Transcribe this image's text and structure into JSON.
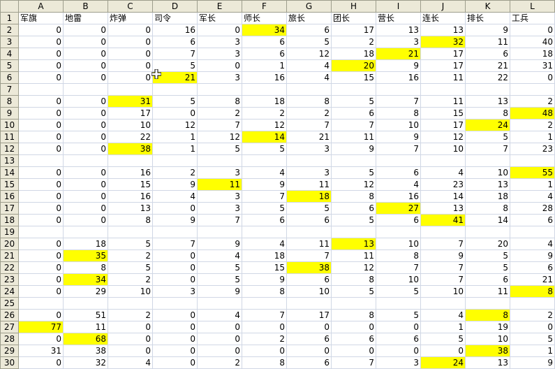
{
  "columns": [
    "A",
    "B",
    "C",
    "D",
    "E",
    "F",
    "G",
    "H",
    "I",
    "J",
    "K",
    "L"
  ],
  "header_row": [
    "军旗",
    "地雷",
    "炸弹",
    "司令",
    "军长",
    "师长",
    "旅长",
    "团长",
    "营长",
    "连长",
    "排长",
    "工兵"
  ],
  "rows": [
    {
      "n": "2",
      "v": [
        "0",
        "0",
        "0",
        "16",
        "0",
        "34",
        "6",
        "17",
        "13",
        "13",
        "9",
        "0"
      ],
      "h": [
        5
      ]
    },
    {
      "n": "3",
      "v": [
        "0",
        "0",
        "0",
        "6",
        "3",
        "6",
        "5",
        "2",
        "3",
        "32",
        "11",
        "40"
      ],
      "h": [
        9
      ]
    },
    {
      "n": "4",
      "v": [
        "0",
        "0",
        "0",
        "7",
        "3",
        "6",
        "12",
        "18",
        "21",
        "17",
        "6",
        "18"
      ],
      "h": [
        8
      ]
    },
    {
      "n": "5",
      "v": [
        "0",
        "0",
        "0",
        "5",
        "0",
        "1",
        "4",
        "20",
        "9",
        "17",
        "21",
        "31"
      ],
      "h": [
        7
      ]
    },
    {
      "n": "6",
      "v": [
        "0",
        "0",
        "0",
        "21",
        "3",
        "16",
        "4",
        "15",
        "16",
        "11",
        "22",
        "0"
      ],
      "h": [
        3
      ]
    },
    {
      "n": "7",
      "v": [
        "",
        "",
        "",
        "",
        "",
        "",
        "",
        "",
        "",
        "",
        "",
        ""
      ],
      "h": []
    },
    {
      "n": "8",
      "v": [
        "0",
        "0",
        "31",
        "5",
        "8",
        "18",
        "8",
        "5",
        "7",
        "11",
        "13",
        "2"
      ],
      "h": [
        2
      ]
    },
    {
      "n": "9",
      "v": [
        "0",
        "0",
        "17",
        "0",
        "2",
        "2",
        "2",
        "6",
        "8",
        "15",
        "8",
        "48"
      ],
      "h": [
        11
      ]
    },
    {
      "n": "10",
      "v": [
        "0",
        "0",
        "10",
        "12",
        "7",
        "12",
        "7",
        "7",
        "10",
        "17",
        "24",
        "2"
      ],
      "h": [
        10
      ]
    },
    {
      "n": "11",
      "v": [
        "0",
        "0",
        "22",
        "1",
        "12",
        "14",
        "21",
        "11",
        "9",
        "12",
        "5",
        "1"
      ],
      "h": [
        5
      ]
    },
    {
      "n": "12",
      "v": [
        "0",
        "0",
        "38",
        "1",
        "5",
        "5",
        "3",
        "9",
        "7",
        "10",
        "7",
        "23"
      ],
      "h": [
        2
      ]
    },
    {
      "n": "13",
      "v": [
        "",
        "",
        "",
        "",
        "",
        "",
        "",
        "",
        "",
        "",
        "",
        ""
      ],
      "h": []
    },
    {
      "n": "14",
      "v": [
        "0",
        "0",
        "16",
        "2",
        "3",
        "4",
        "3",
        "5",
        "6",
        "4",
        "10",
        "55"
      ],
      "h": [
        11
      ]
    },
    {
      "n": "15",
      "v": [
        "0",
        "0",
        "15",
        "9",
        "11",
        "9",
        "11",
        "12",
        "4",
        "23",
        "13",
        "1"
      ],
      "h": [
        4
      ]
    },
    {
      "n": "16",
      "v": [
        "0",
        "0",
        "16",
        "4",
        "3",
        "7",
        "18",
        "8",
        "16",
        "14",
        "18",
        "4"
      ],
      "h": [
        6
      ]
    },
    {
      "n": "17",
      "v": [
        "0",
        "0",
        "13",
        "0",
        "3",
        "5",
        "5",
        "6",
        "27",
        "13",
        "8",
        "28"
      ],
      "h": [
        8
      ]
    },
    {
      "n": "18",
      "v": [
        "0",
        "0",
        "8",
        "9",
        "7",
        "6",
        "6",
        "5",
        "6",
        "41",
        "14",
        "6"
      ],
      "h": [
        9
      ]
    },
    {
      "n": "19",
      "v": [
        "",
        "",
        "",
        "",
        "",
        "",
        "",
        "",
        "",
        "",
        "",
        ""
      ],
      "h": []
    },
    {
      "n": "20",
      "v": [
        "0",
        "18",
        "5",
        "7",
        "9",
        "4",
        "11",
        "13",
        "10",
        "7",
        "20",
        "4"
      ],
      "h": [
        7
      ]
    },
    {
      "n": "21",
      "v": [
        "0",
        "35",
        "2",
        "0",
        "4",
        "18",
        "7",
        "11",
        "8",
        "9",
        "5",
        "9"
      ],
      "h": [
        1
      ]
    },
    {
      "n": "22",
      "v": [
        "0",
        "8",
        "5",
        "0",
        "5",
        "15",
        "38",
        "12",
        "7",
        "7",
        "5",
        "6"
      ],
      "h": [
        6
      ]
    },
    {
      "n": "23",
      "v": [
        "0",
        "34",
        "2",
        "0",
        "5",
        "9",
        "6",
        "8",
        "10",
        "7",
        "6",
        "21"
      ],
      "h": [
        1
      ]
    },
    {
      "n": "24",
      "v": [
        "0",
        "29",
        "10",
        "3",
        "9",
        "8",
        "10",
        "5",
        "5",
        "10",
        "11",
        "8"
      ],
      "h": [
        11
      ]
    },
    {
      "n": "25",
      "v": [
        "",
        "",
        "",
        "",
        "",
        "",
        "",
        "",
        "",
        "",
        "",
        ""
      ],
      "h": []
    },
    {
      "n": "26",
      "v": [
        "0",
        "51",
        "2",
        "0",
        "4",
        "7",
        "17",
        "8",
        "5",
        "4",
        "8",
        "2"
      ],
      "h": [
        10
      ]
    },
    {
      "n": "27",
      "v": [
        "77",
        "11",
        "0",
        "0",
        "0",
        "0",
        "0",
        "0",
        "0",
        "1",
        "19",
        "0"
      ],
      "h": [
        0
      ]
    },
    {
      "n": "28",
      "v": [
        "0",
        "68",
        "0",
        "0",
        "0",
        "2",
        "6",
        "6",
        "6",
        "5",
        "10",
        "5"
      ],
      "h": [
        1
      ]
    },
    {
      "n": "29",
      "v": [
        "31",
        "38",
        "0",
        "0",
        "0",
        "0",
        "0",
        "0",
        "0",
        "0",
        "38",
        "1"
      ],
      "h": [
        10
      ]
    },
    {
      "n": "30",
      "v": [
        "0",
        "32",
        "4",
        "0",
        "2",
        "8",
        "6",
        "7",
        "3",
        "24",
        "13",
        "9"
      ],
      "h": [
        9
      ]
    }
  ],
  "colors": {
    "highlight": "#ffff00",
    "active_col_header": "#ffc873",
    "header_bg": "#ece9d8"
  },
  "cursor": "move-cross-icon"
}
